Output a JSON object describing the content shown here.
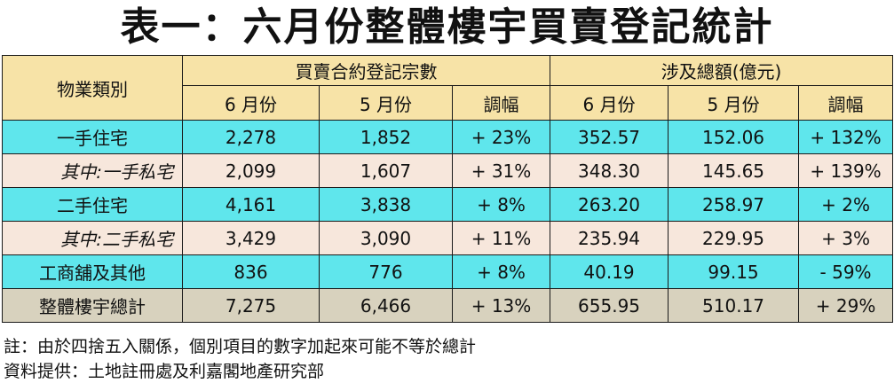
{
  "title": "表一：六月份整體樓宇買賣登記統計",
  "header": {
    "category": "物業類別",
    "group_count": "買賣合約登記宗數",
    "group_value": "涉及總額(億元)",
    "jun": "6 月份",
    "may": "5 月份",
    "change": "調幅"
  },
  "rows": [
    {
      "label": "一手住宅",
      "cnt_jun": "2,278",
      "cnt_may": "1,852",
      "cnt_chg": "+ 23%",
      "val_jun": "352.57",
      "val_may": "152.06",
      "val_chg": "+ 132%"
    },
    {
      "label": "其中:一手私宅",
      "cnt_jun": "2,099",
      "cnt_may": "1,607",
      "cnt_chg": "+ 31%",
      "val_jun": "348.30",
      "val_may": "145.65",
      "val_chg": "+ 139%"
    },
    {
      "label": "二手住宅",
      "cnt_jun": "4,161",
      "cnt_may": "3,838",
      "cnt_chg": "+ 8%",
      "val_jun": "263.20",
      "val_may": "258.97",
      "val_chg": "+ 2%"
    },
    {
      "label": "其中:二手私宅",
      "cnt_jun": "3,429",
      "cnt_may": "3,090",
      "cnt_chg": "+ 11%",
      "val_jun": "235.94",
      "val_may": "229.95",
      "val_chg": "+ 3%"
    },
    {
      "label": "工商舖及其他",
      "cnt_jun": "836",
      "cnt_may": "776",
      "cnt_chg": "+ 8%",
      "val_jun": "40.19",
      "val_may": "99.15",
      "val_chg": "- 59%"
    },
    {
      "label": "整體樓宇總計",
      "cnt_jun": "7,275",
      "cnt_may": "6,466",
      "cnt_chg": "+ 13%",
      "val_jun": "655.95",
      "val_may": "510.17",
      "val_chg": "+ 29%"
    }
  ],
  "notes": {
    "note": "註：由於四捨五入關係，個別項目的數字加起來可能不等於總計",
    "source": "資料提供：土地註冊處及利嘉閣地產研究部"
  },
  "colors": {
    "header_bg": "#f7e3a7",
    "main_row_bg": "#5fe6ec",
    "sub_row_bg": "#f7e7dc",
    "total_row_bg": "#d8d2be"
  }
}
